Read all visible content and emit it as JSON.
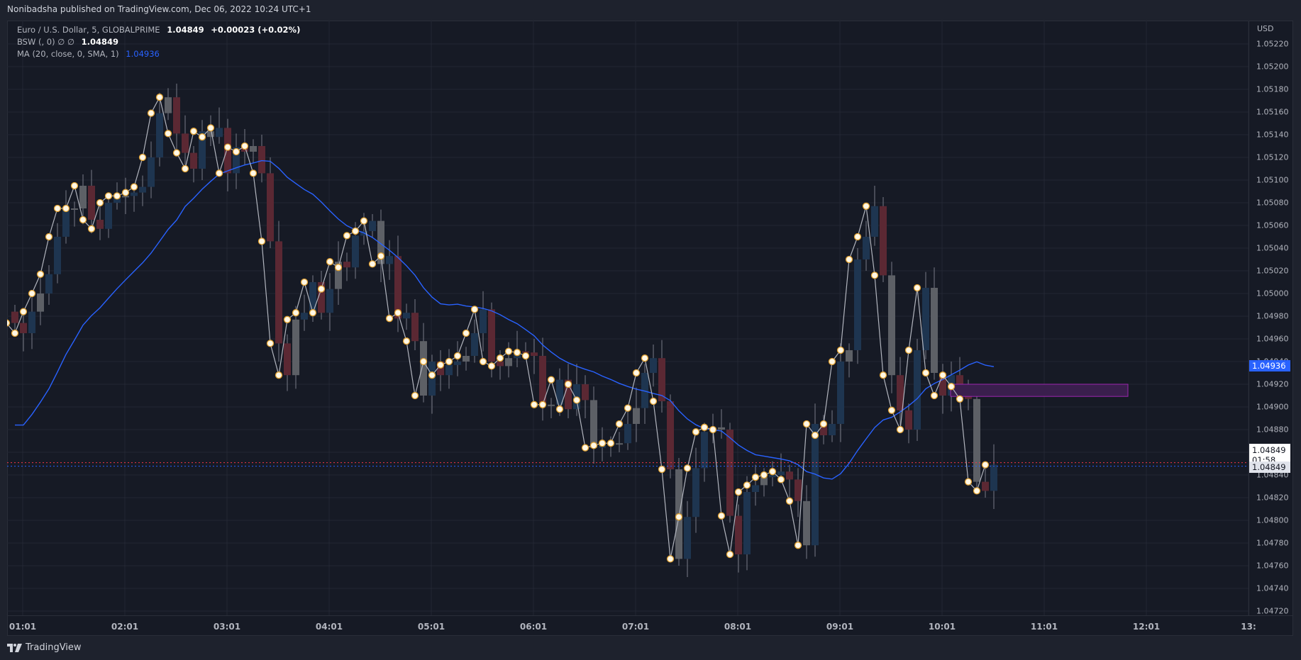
{
  "header": {
    "published": "Nonibadsha published on TradingView.com, Dec 06, 2022 10:24 UTC+1"
  },
  "legend": {
    "symbol": "Euro / U.S. Dollar, 5, GLOBALPRIME",
    "last": "1.04849",
    "change": "+0.00023 (+0.02%)",
    "indicator1_label": "BSW (, 0)  ∅  ∅",
    "indicator1_value": "1.04849",
    "indicator2_label": "MA (20, close, 0, SMA, 1)",
    "indicator2_value": "1.04936"
  },
  "price_axis": {
    "currency": "USD",
    "ticks": [
      "1.05220",
      "1.05200",
      "1.05180",
      "1.05160",
      "1.05140",
      "1.05120",
      "1.05100",
      "1.05080",
      "1.05060",
      "1.05040",
      "1.05020",
      "1.05000",
      "1.04980",
      "1.04960",
      "1.04940",
      "1.04920",
      "1.04900",
      "1.04880",
      "1.04860",
      "1.04840",
      "1.04820",
      "1.04800",
      "1.04780",
      "1.04760",
      "1.04740",
      "1.04720"
    ],
    "ma_tag": "1.04936",
    "current_tag": "1.04849",
    "countdown": "01:58",
    "current_tag2": "1.04849"
  },
  "time_axis": {
    "ticks": [
      "01:01",
      "02:01",
      "03:01",
      "04:01",
      "05:01",
      "06:01",
      "07:01",
      "08:01",
      "09:01",
      "10:01",
      "11:01",
      "12:01",
      "13:"
    ]
  },
  "footer": {
    "brand": "TradingView"
  },
  "colors": {
    "background": "#161a25",
    "grid": "#232733",
    "bull": "#1e3550",
    "bear": "#5b2833",
    "neutral": "#5d6066",
    "ma_line": "#2962ff",
    "dot_fill": "#fff8e6",
    "dot_stroke": "#e0a030",
    "zigzag": "#b2b5be",
    "zone_fill": "#3a1f4d",
    "zone_stroke": "#9c27b0",
    "current_line": "#f23645",
    "ma_dotted": "#2962ff"
  },
  "chart_data": {
    "type": "candlestick",
    "title": "Euro / U.S. Dollar, 5, GLOBALPRIME",
    "xlabel": "",
    "ylabel": "USD",
    "ylim": [
      1.0472,
      1.0522
    ],
    "x_start": "00:50",
    "interval_minutes": 5,
    "closes": [
      1.04974,
      1.04965,
      1.04984,
      1.05,
      1.05017,
      1.0505,
      1.05075,
      1.05075,
      1.05095,
      1.05065,
      1.05057,
      1.0508,
      1.05086,
      1.05086,
      1.05089,
      1.05094,
      1.0512,
      1.05159,
      1.05173,
      1.05141,
      1.05124,
      1.0511,
      1.05143,
      1.05138,
      1.05146,
      1.05106,
      1.05129,
      1.05125,
      1.0513,
      1.05106,
      1.05046,
      1.04956,
      1.04928,
      1.04977,
      1.04983,
      1.0501,
      1.04983,
      1.05004,
      1.05028,
      1.05023,
      1.05051,
      1.05055,
      1.05064,
      1.05026,
      1.05033,
      1.04978,
      1.04983,
      1.04958,
      1.0491,
      1.0494,
      1.04928,
      1.04937,
      1.0494,
      1.04945,
      1.04965,
      1.04986,
      1.0494,
      1.04936,
      1.04943,
      1.04949,
      1.04948,
      1.04945,
      1.04902,
      1.04902,
      1.04924,
      1.04898,
      1.0492,
      1.04906,
      1.04864,
      1.04866,
      1.04868,
      1.04868,
      1.04885,
      1.04899,
      1.0493,
      1.04943,
      1.04905,
      1.04845,
      1.04766,
      1.04803,
      1.04846,
      1.04878,
      1.04882,
      1.0488,
      1.04804,
      1.0477,
      1.04825,
      1.04831,
      1.04838,
      1.0484,
      1.04843,
      1.04836,
      1.04817,
      1.04778,
      1.04885,
      1.04875,
      1.04885,
      1.0494,
      1.0495,
      1.0503,
      1.0505,
      1.05077,
      1.05016,
      1.04928,
      1.04897,
      1.0488,
      1.0495,
      1.05005,
      1.0493,
      1.0491,
      1.04928,
      1.04918,
      1.04907,
      1.04834,
      1.04826,
      1.04849
    ],
    "ma_series_label": "MA (20, close, 0, SMA, 1)",
    "ma_last": 1.04936,
    "zone": {
      "from_time": "10:11",
      "to_time": "11:46",
      "top": 1.0492,
      "bottom": 1.04913
    },
    "last_price": 1.04849
  }
}
